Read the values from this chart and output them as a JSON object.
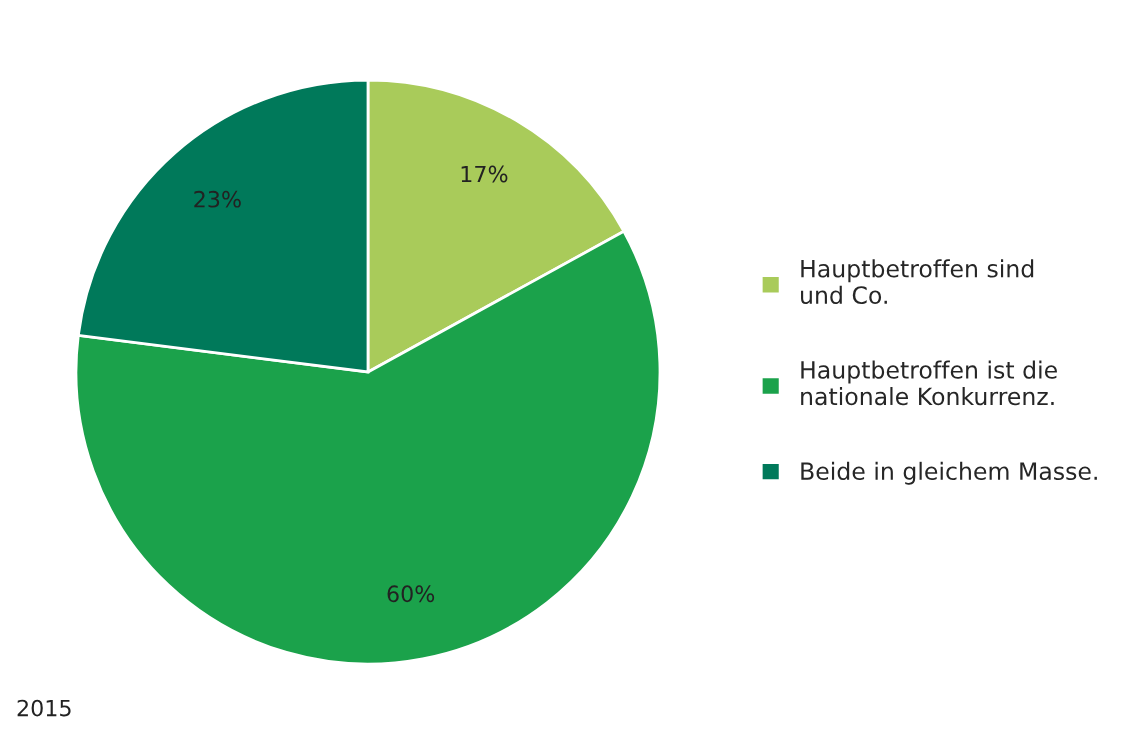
{
  "chart_data": {
    "type": "pie",
    "categories": [
      "Hauptbetroffen sind\nund Co.",
      "Hauptbetroffen ist die\nnationale Konkurrenz.",
      "Beide in gleichem Masse."
    ],
    "values": [
      17,
      60,
      23
    ],
    "value_labels": [
      "17%",
      "60%",
      "23%"
    ],
    "colors": [
      "#a9cb5a",
      "#1ba24b",
      "#00795a"
    ],
    "legend": "right",
    "annotations": [
      "2015"
    ]
  }
}
